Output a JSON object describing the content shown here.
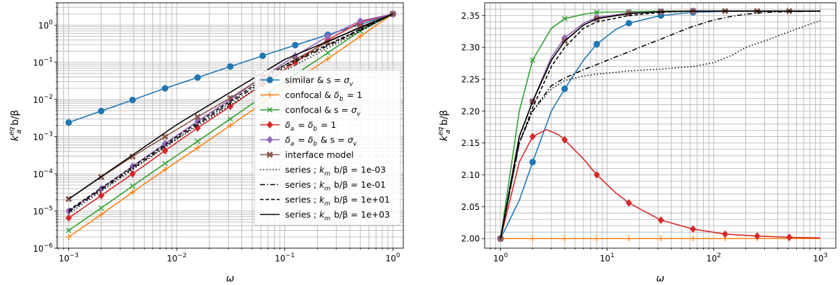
{
  "chart_data": [
    {
      "type": "line",
      "xlabel": "ω",
      "ylabel": "k_a^eq b/β",
      "xscale": "log",
      "yscale": "log",
      "xlim": [
        0.00078,
        1.25
      ],
      "ylim": [
        1e-06,
        4
      ],
      "grid": "major and minor",
      "legend_position": "center-right",
      "x_ticks": [
        {
          "value": 0.001,
          "base": "10",
          "exp": "−3"
        },
        {
          "value": 0.01,
          "base": "10",
          "exp": "−2"
        },
        {
          "value": 0.1,
          "base": "10",
          "exp": "−1"
        },
        {
          "value": 1,
          "base": "10",
          "exp": "0"
        }
      ],
      "y_ticks": [
        {
          "value": 1e-06,
          "base": "10",
          "exp": "−6"
        },
        {
          "value": 1e-05,
          "base": "10",
          "exp": "−5"
        },
        {
          "value": 0.0001,
          "base": "10",
          "exp": "−4"
        },
        {
          "value": 0.001,
          "base": "10",
          "exp": "−3"
        },
        {
          "value": 0.01,
          "base": "10",
          "exp": "−2"
        },
        {
          "value": 0.1,
          "base": "10",
          "exp": "−1"
        },
        {
          "value": 1,
          "base": "10",
          "exp": "0"
        }
      ],
      "series": [
        {
          "name": "similar & s = σ_v",
          "color": "#1f77b4",
          "marker": "circle",
          "x": [
            0.001,
            0.002,
            0.0039,
            0.0078,
            0.0156,
            0.0313,
            0.0625,
            0.125,
            0.25,
            0.5,
            1
          ],
          "y": [
            0.0024,
            0.0049,
            0.0097,
            0.02,
            0.039,
            0.077,
            0.15,
            0.29,
            0.55,
            1.05,
            2.0
          ]
        },
        {
          "name": "confocal & δ_b = 1",
          "color": "#ff7f0e",
          "marker": "plus",
          "x": [
            0.001,
            0.002,
            0.0039,
            0.0078,
            0.0156,
            0.0313,
            0.0625,
            0.125,
            0.25,
            0.5,
            1
          ],
          "y": [
            2e-06,
            8e-06,
            3.2e-05,
            0.00013,
            0.0005,
            0.002,
            0.008,
            0.032,
            0.125,
            0.5,
            2.0
          ]
        },
        {
          "name": "confocal & s = σ_v",
          "color": "#2ca02c",
          "marker": "x",
          "x": [
            0.001,
            0.002,
            0.0039,
            0.0078,
            0.0156,
            0.0313,
            0.0625,
            0.125,
            0.25,
            0.5,
            1
          ],
          "y": [
            3e-06,
            1.2e-05,
            4.7e-05,
            0.00019,
            0.00075,
            0.003,
            0.012,
            0.047,
            0.18,
            0.7,
            2.0
          ]
        },
        {
          "name": "δ_a = δ_b = 1",
          "color": "#d62728",
          "marker": "diamond",
          "x": [
            0.001,
            0.002,
            0.0039,
            0.0078,
            0.0156,
            0.0313,
            0.0625,
            0.125,
            0.25,
            0.5,
            1
          ],
          "y": [
            6.5e-06,
            2.6e-05,
            0.0001,
            0.00042,
            0.0017,
            0.0065,
            0.026,
            0.1,
            0.4,
            1.2,
            2.0
          ]
        },
        {
          "name": "δ_a = δ_b & s = σ_v",
          "color": "#9467bd",
          "marker": "diamond",
          "x": [
            0.001,
            0.002,
            0.0039,
            0.0078,
            0.0156,
            0.0313,
            0.0625,
            0.125,
            0.25,
            0.5,
            1
          ],
          "y": [
            1e-05,
            4e-05,
            0.00016,
            0.00065,
            0.0026,
            0.01,
            0.04,
            0.15,
            0.5,
            1.3,
            2.0
          ]
        },
        {
          "name": "interface model",
          "color": "#8c564b",
          "marker": "cross",
          "x": [
            0.001,
            0.002,
            0.0039,
            0.0078,
            0.0156,
            0.0313,
            0.0625,
            0.125,
            0.25,
            0.5,
            1
          ],
          "y": [
            2.1e-05,
            8.2e-05,
            0.00029,
            0.001,
            0.0034,
            0.011,
            0.04,
            0.12,
            0.35,
            0.9,
            2.0
          ]
        },
        {
          "name": "series ; k_m b/β = 1e-03",
          "color": "#000000",
          "dash": "dotted",
          "x": [
            0.001,
            0.01,
            0.1,
            1
          ],
          "y": [
            8.5e-06,
            0.00085,
            0.06,
            2.0
          ]
        },
        {
          "name": "series ; k_m b/β = 1e-01",
          "color": "#000000",
          "dash": "dashdot",
          "x": [
            0.001,
            0.01,
            0.1,
            1
          ],
          "y": [
            9.5e-06,
            0.0009,
            0.075,
            2.0
          ]
        },
        {
          "name": "series ; k_m b/β = 1e+01",
          "color": "#000000",
          "dash": "dashed",
          "x": [
            0.001,
            0.01,
            0.1,
            1
          ],
          "y": [
            1.05e-05,
            0.001,
            0.085,
            2.0
          ]
        },
        {
          "name": "series ; k_m b/β = 1e+03",
          "color": "#000000",
          "dash": "solid",
          "x": [
            0.001,
            0.01,
            0.1,
            1
          ],
          "y": [
            2.1e-05,
            0.0021,
            0.12,
            2.0
          ]
        }
      ]
    },
    {
      "type": "line",
      "xlabel": "ω",
      "ylabel": "k_a^eq b/β",
      "xscale": "log",
      "yscale": "linear",
      "xlim": [
        0.71,
        1400
      ],
      "ylim": [
        1.985,
        2.37
      ],
      "grid": "major and minor",
      "x_ticks": [
        {
          "value": 1,
          "base": "10",
          "exp": "0"
        },
        {
          "value": 10,
          "base": "10",
          "exp": "1"
        },
        {
          "value": 100,
          "base": "10",
          "exp": "2"
        },
        {
          "value": 1000,
          "base": "10",
          "exp": "3"
        }
      ],
      "y_ticks": [
        {
          "value": 2.0,
          "label": "2.00"
        },
        {
          "value": 2.05,
          "label": "2.05"
        },
        {
          "value": 2.1,
          "label": "2.10"
        },
        {
          "value": 2.15,
          "label": "2.15"
        },
        {
          "value": 2.2,
          "label": "2.20"
        },
        {
          "value": 2.25,
          "label": "2.25"
        },
        {
          "value": 2.3,
          "label": "2.30"
        },
        {
          "value": 2.35,
          "label": "2.35"
        }
      ],
      "series": [
        {
          "color": "#1f77b4",
          "marker": "circle",
          "x": [
            1,
            1.5,
            2,
            3,
            4,
            6,
            8,
            12,
            16,
            32,
            64,
            128,
            256,
            512,
            1000
          ],
          "y": [
            2.0,
            2.06,
            2.12,
            2.2,
            2.235,
            2.28,
            2.305,
            2.328,
            2.338,
            2.35,
            2.355,
            2.3565,
            2.357,
            2.357,
            2.357
          ],
          "markers_x": [
            1,
            2,
            4,
            8,
            16,
            32,
            64
          ]
        },
        {
          "color": "#ff7f0e",
          "marker": "plus",
          "x": [
            1,
            1000
          ],
          "y": [
            2.0,
            2.0
          ],
          "markers_x": [
            1,
            2,
            4,
            8,
            16,
            32,
            64,
            128,
            256,
            512
          ]
        },
        {
          "color": "#2ca02c",
          "marker": "x",
          "x": [
            1,
            1.5,
            2,
            3,
            4,
            6,
            8,
            16,
            32,
            64,
            1000
          ],
          "y": [
            2.0,
            2.2,
            2.28,
            2.33,
            2.345,
            2.352,
            2.355,
            2.356,
            2.357,
            2.357,
            2.357
          ],
          "markers_x": [
            2,
            4,
            8,
            16,
            32,
            64
          ]
        },
        {
          "color": "#d62728",
          "marker": "diamond",
          "x": [
            1,
            1.5,
            2,
            2.7,
            3.5,
            4,
            6,
            8,
            12,
            16,
            32,
            64,
            128,
            256,
            512,
            1000
          ],
          "y": [
            2.0,
            2.12,
            2.16,
            2.171,
            2.163,
            2.155,
            2.125,
            2.1,
            2.072,
            2.056,
            2.029,
            2.015,
            2.007,
            2.004,
            2.002,
            2.001
          ],
          "markers_x": [
            1,
            2,
            4,
            8,
            16,
            32,
            64,
            128,
            256,
            512
          ]
        },
        {
          "color": "#9467bd",
          "marker": "diamond",
          "x": [
            1,
            1.5,
            2,
            3,
            4,
            6,
            8,
            16,
            32,
            64,
            1000
          ],
          "y": [
            2.0,
            2.16,
            2.215,
            2.285,
            2.315,
            2.338,
            2.347,
            2.354,
            2.356,
            2.357,
            2.357
          ],
          "markers_x": [
            1,
            2,
            4,
            8,
            16,
            32,
            64
          ]
        },
        {
          "color": "#8c564b",
          "marker": "cross",
          "x": [
            1,
            1.5,
            2,
            3,
            4,
            6,
            8,
            16,
            32,
            64,
            128,
            256,
            512,
            1000
          ],
          "y": [
            2.0,
            2.16,
            2.215,
            2.28,
            2.31,
            2.335,
            2.345,
            2.353,
            2.356,
            2.357,
            2.357,
            2.357,
            2.357,
            2.357
          ],
          "markers_x": [
            1,
            2,
            4,
            8,
            16,
            32,
            64,
            128,
            256,
            512
          ]
        },
        {
          "color": "#000000",
          "dash": "dotted",
          "x": [
            1,
            1.5,
            2,
            3,
            4,
            6,
            8,
            16,
            32,
            64,
            100,
            150,
            200,
            300,
            500,
            700,
            1000
          ],
          "y": [
            2.0,
            2.15,
            2.2,
            2.235,
            2.248,
            2.255,
            2.258,
            2.263,
            2.266,
            2.27,
            2.276,
            2.288,
            2.3,
            2.31,
            2.324,
            2.333,
            2.342
          ]
        },
        {
          "color": "#000000",
          "dash": "dashdot",
          "x": [
            1,
            1.5,
            2,
            3,
            4,
            6,
            8,
            12,
            16,
            24,
            32,
            48,
            64,
            100,
            150,
            200,
            300,
            500,
            1000
          ],
          "y": [
            2.0,
            2.15,
            2.2,
            2.24,
            2.252,
            2.265,
            2.273,
            2.285,
            2.293,
            2.305,
            2.313,
            2.325,
            2.333,
            2.343,
            2.349,
            2.352,
            2.355,
            2.356,
            2.357
          ]
        },
        {
          "color": "#000000",
          "dash": "dashed",
          "x": [
            1,
            1.5,
            2,
            3,
            4,
            6,
            8,
            16,
            32,
            64,
            1000
          ],
          "y": [
            2.0,
            2.15,
            2.205,
            2.27,
            2.3,
            2.33,
            2.34,
            2.35,
            2.355,
            2.357,
            2.357
          ]
        },
        {
          "color": "#000000",
          "dash": "solid",
          "x": [
            1,
            1.5,
            2,
            3,
            4,
            6,
            8,
            16,
            32,
            64,
            1000
          ],
          "y": [
            2.0,
            2.16,
            2.215,
            2.28,
            2.31,
            2.335,
            2.345,
            2.353,
            2.356,
            2.357,
            2.357
          ]
        }
      ]
    }
  ]
}
